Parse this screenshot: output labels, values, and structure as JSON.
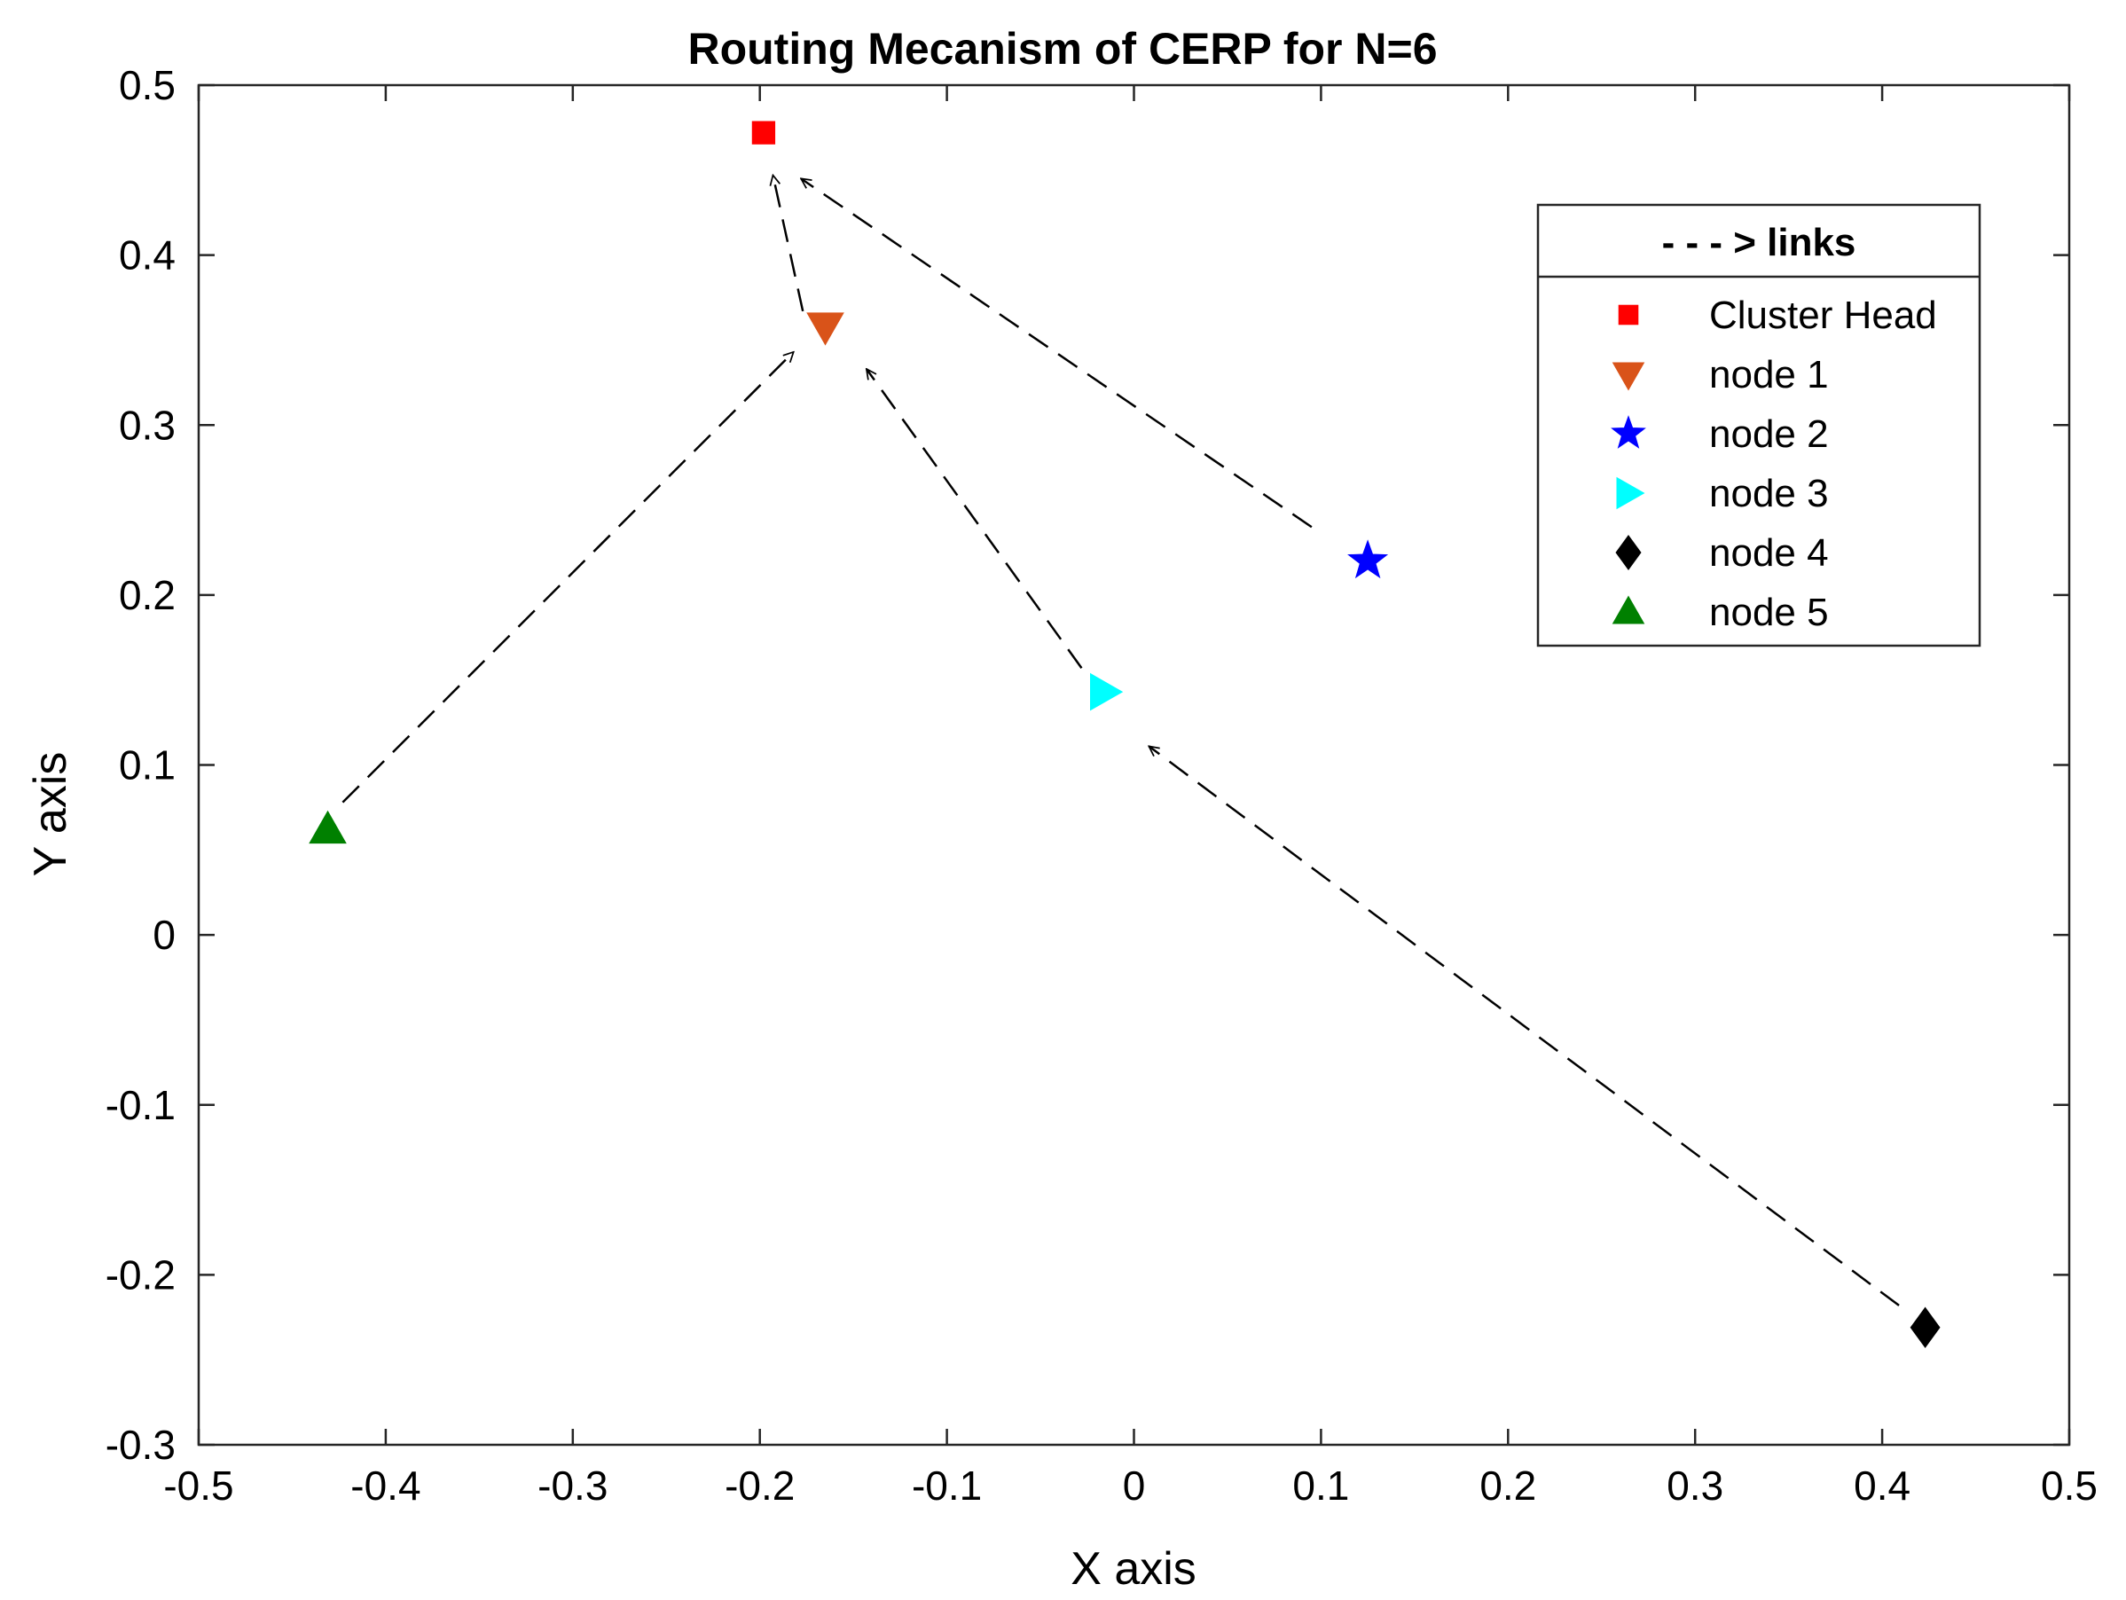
{
  "chart_data": {
    "type": "scatter",
    "title": "Routing Mecanism of CERP for N=6",
    "xlabel": "X axis",
    "ylabel": "Y axis",
    "xlim": [
      -0.5,
      0.5
    ],
    "ylim": [
      -0.3,
      0.5
    ],
    "xticks": [
      -0.5,
      -0.4,
      -0.3,
      -0.2,
      -0.1,
      0,
      0.1,
      0.2,
      0.3,
      0.4,
      0.5
    ],
    "yticks": [
      -0.3,
      -0.2,
      -0.1,
      0,
      0.1,
      0.2,
      0.3,
      0.4,
      0.5
    ],
    "xtick_labels": [
      "-0.5",
      "-0.4",
      "-0.3",
      "-0.2",
      "-0.1",
      "0",
      "0.1",
      "0.2",
      "0.3",
      "0.4",
      "0.5"
    ],
    "ytick_labels": [
      "-0.3",
      "-0.2",
      "-0.1",
      "0",
      "0.1",
      "0.2",
      "0.3",
      "0.4",
      "0.5"
    ],
    "grid": false,
    "legend_placement": "top-right",
    "legend_header": "- - - > links",
    "series": [
      {
        "name": "Cluster Head",
        "marker": "square",
        "color": "#ff0000",
        "x": -0.198,
        "y": 0.472
      },
      {
        "name": "node 1",
        "marker": "triangle-down",
        "color": "#d95319",
        "x": -0.165,
        "y": 0.358
      },
      {
        "name": "node 2",
        "marker": "star",
        "color": "#0000ff",
        "x": 0.125,
        "y": 0.22
      },
      {
        "name": "node 3",
        "marker": "triangle-right",
        "color": "#00ffff",
        "x": -0.016,
        "y": 0.143
      },
      {
        "name": "node 4",
        "marker": "diamond",
        "color": "#000000",
        "x": 0.423,
        "y": -0.231
      },
      {
        "name": "node 5",
        "marker": "triangle-up",
        "color": "#008000",
        "x": -0.431,
        "y": 0.062
      }
    ],
    "links": [
      {
        "from": [
          0.095,
          0.24
        ],
        "to": [
          -0.178,
          0.445
        ]
      },
      {
        "from": [
          -0.177,
          0.367
        ],
        "to": [
          -0.193,
          0.447
        ]
      },
      {
        "from": [
          -0.423,
          0.078
        ],
        "to": [
          -0.182,
          0.343
        ]
      },
      {
        "from": [
          -0.028,
          0.157
        ],
        "to": [
          -0.143,
          0.333
        ]
      },
      {
        "from": [
          0.409,
          -0.218
        ],
        "to": [
          0.008,
          0.111
        ]
      }
    ]
  }
}
